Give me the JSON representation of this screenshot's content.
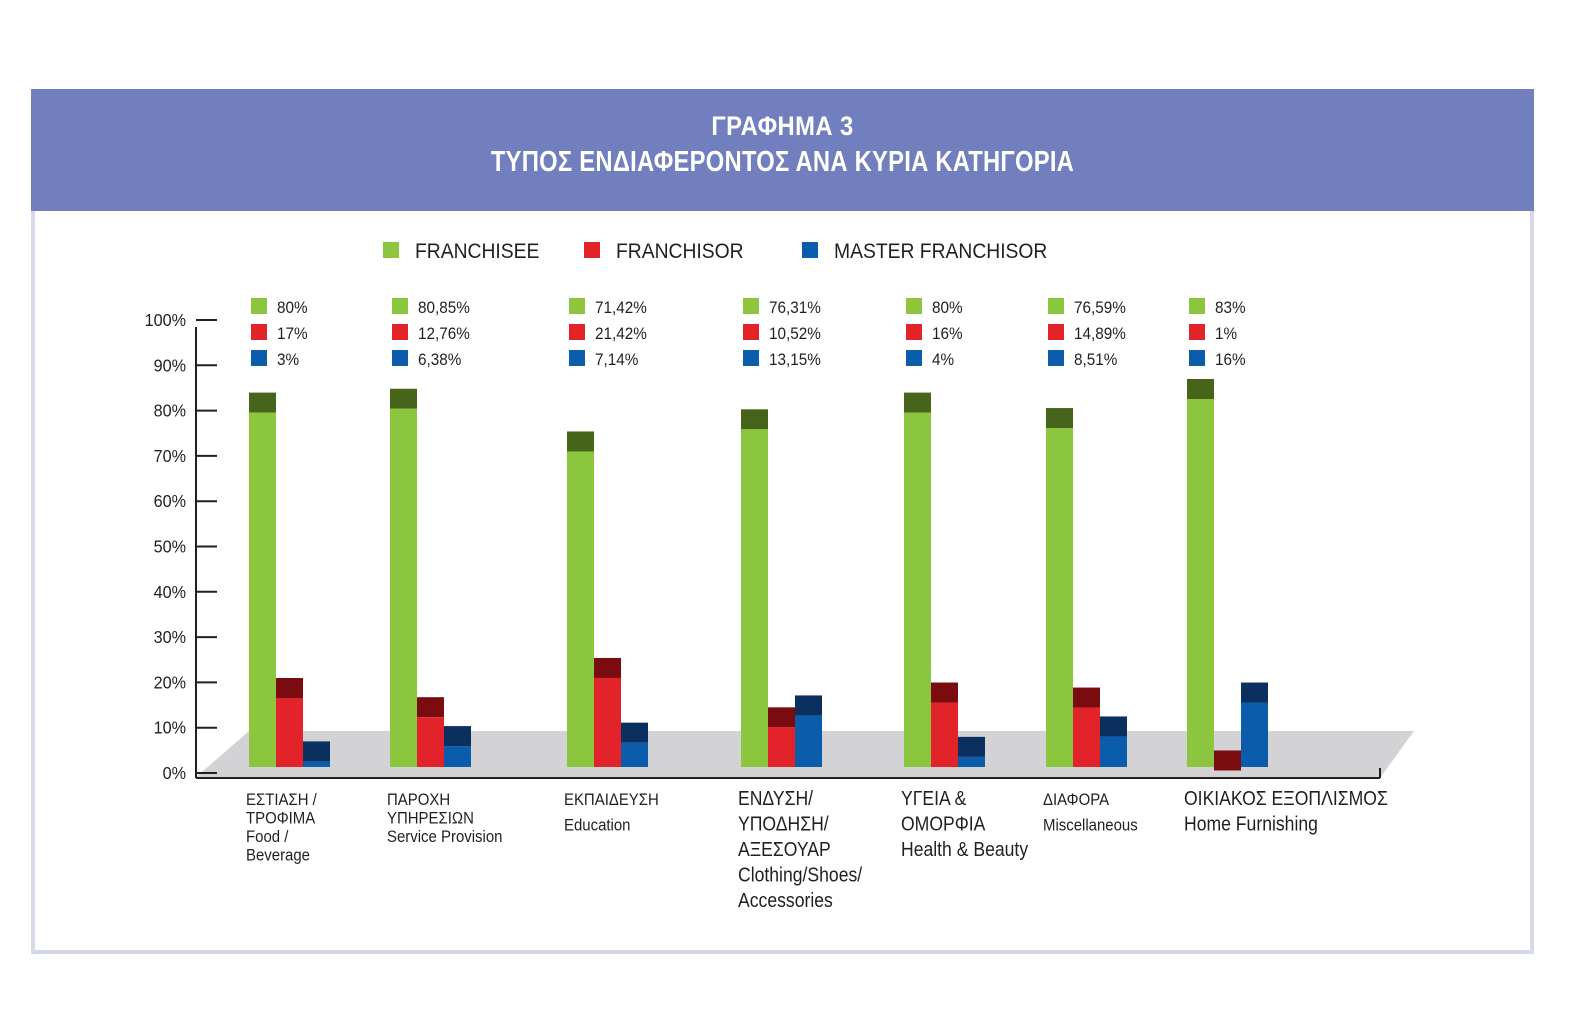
{
  "header": {
    "title_line1": "ΓΡΑΦΗΜΑ 3",
    "title_line2": "ΤΥΠΟΣ ΕΝΔΙΑΦΕΡΟΝΤΟΣ ΑΝΑ ΚΥΡΙΑ ΚΑΤΗΓΟΡΙΑ"
  },
  "colors": {
    "banner": "#727fbe",
    "franchisee": "#8cc63e",
    "franchisee_top": "#46651b",
    "franchisor": "#e2232a",
    "franchisor_top": "#7a0b0f",
    "master": "#0b5cab",
    "master_top": "#0b2f5f",
    "floor": "#d3d3d5"
  },
  "chart_data": {
    "type": "bar",
    "title": "ΤΥΠΟΣ ΕΝΔΙΑΦΕΡΟΝΤΟΣ ΑΝΑ ΚΥΡΙΑ ΚΑΤΗΓΟΡΙΑ",
    "ylim": [
      0,
      100
    ],
    "legend_position": "top",
    "grid": false,
    "y_ticks": [
      "0%",
      "10%",
      "20%",
      "30%",
      "40%",
      "50%",
      "60%",
      "70%",
      "80%",
      "90%",
      "100%"
    ],
    "categories": [
      [
        "ΕΣΤΙΑΣΗ /",
        "ΤΡΟΦΙΜΑ",
        "Food /",
        "Beverage"
      ],
      [
        "ΠΑΡΟΧΗ",
        "ΥΠΗΡΕΣΙΩΝ",
        "Service Provision"
      ],
      [
        "ΕΚΠΑΙΔΕΥΣΗ",
        "Education"
      ],
      [
        "ΕΝΔΥΣΗ/",
        "ΥΠΟΔΗΣΗ/",
        "ΑΞΕΣΟΥΑΡ",
        "Clothing/Shoes/",
        "Accessories"
      ],
      [
        "ΥΓΕΙΑ &",
        "ΟΜΟΡΦΙΑ",
        "Health & Beauty"
      ],
      [
        "ΔΙΑΦΟΡΑ",
        "Miscellaneous"
      ],
      [
        "ΟΙΚΙΑΚΟΣ ΕΞΟΠΛΙΣΜΟΣ",
        "Home Furnishing"
      ]
    ],
    "series": [
      {
        "name": "FRANCHISEE",
        "values": [
          80,
          80.85,
          71.42,
          76.31,
          80,
          76.59,
          83
        ],
        "labels": [
          "80%",
          "80,85%",
          "71,42%",
          "76,31%",
          "80%",
          "76,59%",
          "83%"
        ]
      },
      {
        "name": "FRANCHISOR",
        "values": [
          17,
          12.76,
          21.42,
          10.52,
          16,
          14.89,
          1
        ],
        "labels": [
          "17%",
          "12,76%",
          "21,42%",
          "10,52%",
          "16%",
          "14,89%",
          "1%"
        ]
      },
      {
        "name": "MASTER FRANCHISOR",
        "values": [
          3,
          6.38,
          7.14,
          13.15,
          4,
          8.51,
          16
        ],
        "labels": [
          "3%",
          "6,38%",
          "7,14%",
          "13,15%",
          "4%",
          "8,51%",
          "16%"
        ]
      }
    ]
  }
}
